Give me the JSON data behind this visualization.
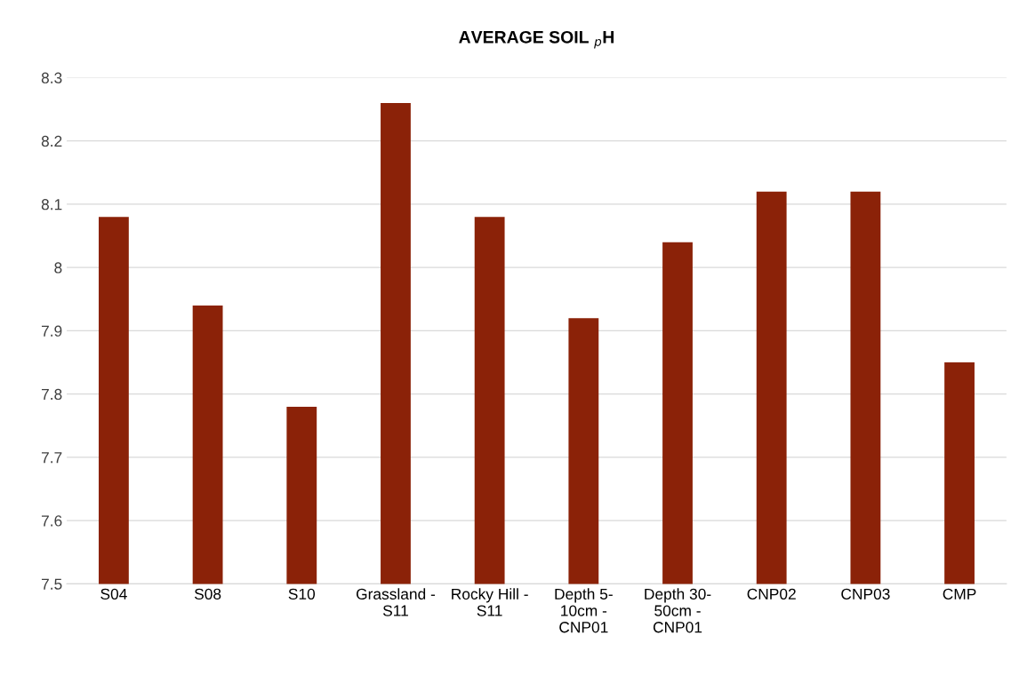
{
  "chart_data": {
    "type": "bar",
    "title": "AVERAGE SOIL $_{p}$H",
    "categories": [
      "S04",
      "S08",
      "S10",
      "Grassland -\nS11",
      "Rocky Hill -\nS11",
      "Depth 5-\n10cm -\nCNP01",
      "Depth 30-\n50cm -\nCNP01",
      "CNP02",
      "CNP03",
      "CMP"
    ],
    "values": [
      8.08,
      7.94,
      7.78,
      8.26,
      8.08,
      7.92,
      8.04,
      8.12,
      8.12,
      7.85
    ],
    "color": "#8b2208",
    "ylim": [
      7.5,
      8.3
    ],
    "yticks": [
      7.5,
      7.6,
      7.7,
      7.8,
      7.9,
      8,
      8.1,
      8.2,
      8.3
    ],
    "grid": "y",
    "legend": false
  }
}
